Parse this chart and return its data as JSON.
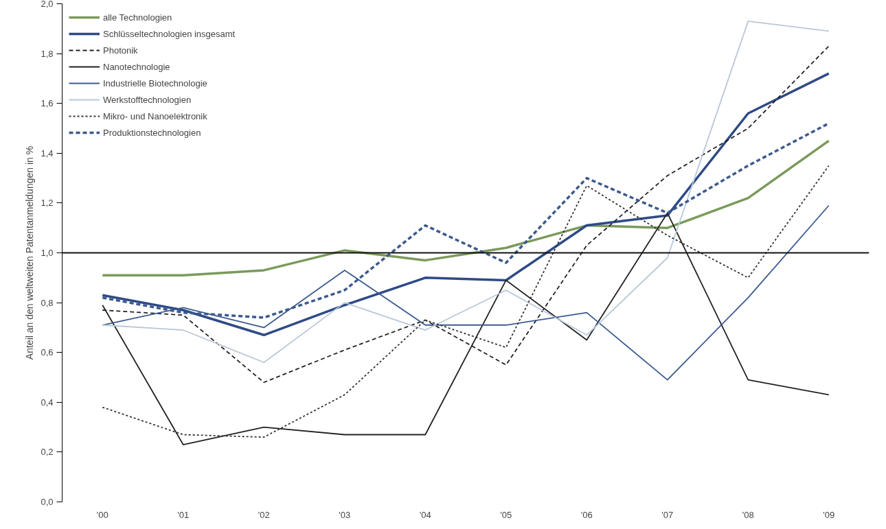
{
  "chart_data": {
    "type": "line",
    "ylabel": "Anteil an den weltweiten Patentanmeldungen in %",
    "categories": [
      "'00",
      "'01",
      "'02",
      "'03",
      "'04",
      "'05",
      "'06",
      "'07",
      "'08",
      "'09"
    ],
    "ylim": [
      0,
      2.0
    ],
    "yticks": [
      {
        "value": 0,
        "label": "0,0"
      },
      {
        "value": 0.2,
        "label": "0,2"
      },
      {
        "value": 0.4,
        "label": "0,4"
      },
      {
        "value": 0.6,
        "label": "0,6"
      },
      {
        "value": 0.8,
        "label": "0,8"
      },
      {
        "value": 1.0,
        "label": "1,0"
      },
      {
        "value": 1.2,
        "label": "1,2"
      },
      {
        "value": 1.4,
        "label": "1,4"
      },
      {
        "value": 1.6,
        "label": "1,6"
      },
      {
        "value": 1.8,
        "label": "1,8"
      },
      {
        "value": 2.0,
        "label": "2,0"
      }
    ],
    "grid": false,
    "legend": "top left",
    "ref_lines": [
      {
        "axis": "y",
        "value": 1.0,
        "label": null,
        "color": "#111111",
        "line_style": "solid"
      }
    ],
    "series": [
      {
        "name": "alle Technologien",
        "color": "#7a9a5a",
        "line_style": "solid",
        "values": [
          0.91,
          0.91,
          0.93,
          1.01,
          0.97,
          1.02,
          1.11,
          1.1,
          1.22,
          1.45
        ]
      },
      {
        "name": "Schlüsseltechnologien insgesamt",
        "color": "#2e4a86",
        "line_style": "solid",
        "values": [
          0.83,
          0.77,
          0.67,
          0.79,
          0.9,
          0.89,
          1.11,
          1.15,
          1.56,
          1.72
        ]
      },
      {
        "name": "Photonik",
        "color": "#222222",
        "line_style": "dashed",
        "values": [
          0.77,
          0.75,
          0.48,
          0.61,
          0.73,
          0.55,
          1.03,
          1.31,
          1.5,
          1.83
        ]
      },
      {
        "name": "Nanotechnologie",
        "color": "#222222",
        "line_style": "solid",
        "values": [
          0.79,
          0.23,
          0.3,
          0.27,
          0.27,
          0.89,
          0.65,
          1.16,
          0.49,
          0.43
        ]
      },
      {
        "name": "Industrielle Biotechnologie",
        "color": "#3a5a90",
        "line_style": "solid",
        "values": [
          0.71,
          0.78,
          0.7,
          0.93,
          0.71,
          0.71,
          0.76,
          0.49,
          0.82,
          1.19
        ]
      },
      {
        "name": "Werkstofftechnologien",
        "color": "#b8c8d8",
        "line_style": "solid",
        "values": [
          0.71,
          0.69,
          0.56,
          0.8,
          0.69,
          0.85,
          0.67,
          0.98,
          1.93,
          1.89
        ]
      },
      {
        "name": "Mikro- und Nanoelektronik",
        "color": "#333333",
        "line_style": "dotted",
        "values": [
          0.38,
          0.27,
          0.26,
          0.43,
          0.73,
          0.62,
          1.27,
          1.07,
          0.9,
          1.35
        ]
      },
      {
        "name": "Produktionstechnologien",
        "color": "#3c5a8c",
        "line_style": "dashed",
        "values": [
          0.82,
          0.76,
          0.74,
          0.85,
          1.11,
          0.96,
          1.3,
          1.16,
          1.35,
          1.52
        ]
      }
    ]
  }
}
